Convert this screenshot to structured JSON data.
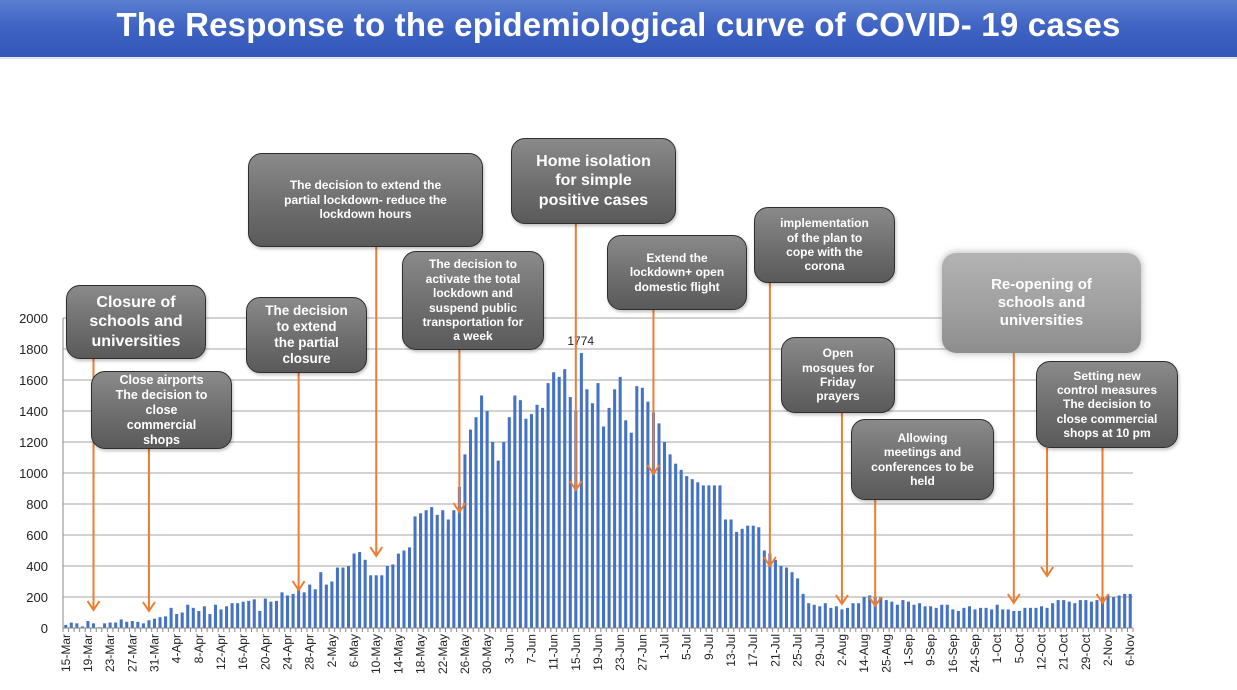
{
  "slide": {
    "title": "The Response to the epidemiological curve of COVID- 19 cases"
  },
  "colors": {
    "bar": "#4472c4",
    "arrow": "#ed7d31",
    "grid": "#a6a6a6",
    "annotation_fill": "#6e6e6e",
    "title_bar": "#3f64c4"
  },
  "chart_data": {
    "type": "bar",
    "title": "",
    "xlabel": "",
    "ylabel": "",
    "ylim": [
      0,
      2000
    ],
    "yticks": [
      0,
      200,
      400,
      600,
      800,
      1000,
      1200,
      1400,
      1600,
      1800,
      2000
    ],
    "grid": true,
    "legend": "none",
    "peak_label": {
      "value": 1774,
      "text": "1774",
      "bar_index": 93
    },
    "xtick_labels": [
      {
        "index": 0,
        "label": "15-Mar"
      },
      {
        "index": 4,
        "label": "19-Mar"
      },
      {
        "index": 8,
        "label": "23-Mar"
      },
      {
        "index": 12,
        "label": "27-Mar"
      },
      {
        "index": 16,
        "label": "31-Mar"
      },
      {
        "index": 20,
        "label": "4-Apr"
      },
      {
        "index": 24,
        "label": "8-Apr"
      },
      {
        "index": 28,
        "label": "12-Apr"
      },
      {
        "index": 32,
        "label": "16-Apr"
      },
      {
        "index": 36,
        "label": "20-Apr"
      },
      {
        "index": 40,
        "label": "24-Apr"
      },
      {
        "index": 44,
        "label": "28-Apr"
      },
      {
        "index": 48,
        "label": "2-May"
      },
      {
        "index": 52,
        "label": "6-May"
      },
      {
        "index": 56,
        "label": "10-May"
      },
      {
        "index": 60,
        "label": "14-May"
      },
      {
        "index": 64,
        "label": "18-May"
      },
      {
        "index": 68,
        "label": "22-May"
      },
      {
        "index": 72,
        "label": "26-May"
      },
      {
        "index": 76,
        "label": "30-May"
      },
      {
        "index": 80,
        "label": "3-Jun"
      },
      {
        "index": 84,
        "label": "7-Jun"
      },
      {
        "index": 88,
        "label": "11-Jun"
      },
      {
        "index": 92,
        "label": "15-Jun"
      },
      {
        "index": 96,
        "label": "19-Jun"
      },
      {
        "index": 100,
        "label": "23-Jun"
      },
      {
        "index": 104,
        "label": "27-Jun"
      },
      {
        "index": 108,
        "label": "1-Jul"
      },
      {
        "index": 112,
        "label": "5-Jul"
      },
      {
        "index": 116,
        "label": "9-Jul"
      },
      {
        "index": 120,
        "label": "13-Jul"
      },
      {
        "index": 124,
        "label": "17-Jul"
      },
      {
        "index": 128,
        "label": "21-Jul"
      },
      {
        "index": 132,
        "label": "25-Jul"
      },
      {
        "index": 136,
        "label": "29-Jul"
      },
      {
        "index": 140,
        "label": "2-Aug"
      },
      {
        "index": 144,
        "label": "14-Aug"
      },
      {
        "index": 148,
        "label": "25-Aug"
      },
      {
        "index": 152,
        "label": "1-Sep"
      },
      {
        "index": 156,
        "label": "9-Sep"
      },
      {
        "index": 160,
        "label": "16-Sep"
      },
      {
        "index": 164,
        "label": "24-Sep"
      },
      {
        "index": 168,
        "label": "1-Oct"
      },
      {
        "index": 172,
        "label": "5-Oct"
      },
      {
        "index": 176,
        "label": "12-Oct"
      },
      {
        "index": 180,
        "label": "21-Oct"
      },
      {
        "index": 184,
        "label": "29-Oct"
      },
      {
        "index": 188,
        "label": "2-Nov"
      },
      {
        "index": 192,
        "label": "6-Nov"
      }
    ],
    "values": [
      20,
      35,
      30,
      10,
      45,
      30,
      5,
      30,
      35,
      35,
      55,
      40,
      45,
      40,
      30,
      50,
      60,
      70,
      75,
      130,
      90,
      100,
      150,
      130,
      110,
      140,
      90,
      150,
      120,
      140,
      160,
      160,
      170,
      175,
      185,
      110,
      190,
      170,
      175,
      230,
      210,
      220,
      250,
      230,
      280,
      250,
      360,
      280,
      300,
      390,
      390,
      400,
      480,
      490,
      440,
      340,
      340,
      340,
      400,
      410,
      480,
      500,
      520,
      720,
      740,
      760,
      780,
      730,
      760,
      700,
      760,
      910,
      1120,
      1280,
      1360,
      1500,
      1400,
      1200,
      1080,
      1200,
      1360,
      1500,
      1470,
      1350,
      1380,
      1440,
      1420,
      1580,
      1650,
      1620,
      1670,
      1490,
      1400,
      1774,
      1540,
      1450,
      1580,
      1300,
      1420,
      1540,
      1620,
      1340,
      1260,
      1560,
      1550,
      1460,
      1390,
      1320,
      1200,
      1120,
      1060,
      1020,
      980,
      960,
      940,
      920,
      920,
      920,
      920,
      700,
      700,
      620,
      640,
      660,
      660,
      650,
      500,
      480,
      440,
      400,
      390,
      360,
      320,
      220,
      160,
      150,
      140,
      160,
      130,
      140,
      120,
      130,
      160,
      160,
      200,
      210,
      200,
      200,
      180,
      170,
      150,
      180,
      170,
      150,
      160,
      140,
      140,
      130,
      150,
      150,
      120,
      110,
      130,
      140,
      120,
      130,
      130,
      120,
      150,
      120,
      120,
      110,
      110,
      130,
      130,
      130,
      140,
      130,
      160,
      180,
      180,
      170,
      160,
      180,
      180,
      170,
      180,
      200,
      210,
      200,
      210,
      220,
      220
    ]
  },
  "annotations": [
    {
      "id": "closure-schools",
      "text": "Closure of\nschools and\nuniversities",
      "arrow_target_index": 5
    },
    {
      "id": "close-airports",
      "text": "Close airports\nThe decision to\nclose\ncommercial\nshops",
      "arrow_target_index": 15
    },
    {
      "id": "extend-partial-closure",
      "text": "The decision\nto extend\nthe partial\nclosure",
      "arrow_target_index": 42
    },
    {
      "id": "extend-partial-lockdown",
      "text": "The decision to extend the\npartial lockdown- reduce the\nlockdown hours",
      "arrow_target_index": 56
    },
    {
      "id": "total-lockdown",
      "text": "The decision to\nactivate the total\nlockdown and\nsuspend public\ntransportation for\na week",
      "arrow_target_index": 71
    },
    {
      "id": "home-isolation",
      "text": "Home isolation\nfor simple\npositive cases",
      "arrow_target_index": 92
    },
    {
      "id": "extend-lockdown-domestic",
      "text": "Extend the\nlockdown+ open\ndomestic flight",
      "arrow_target_index": 106
    },
    {
      "id": "implementation-plan",
      "text": "implementation\nof the plan to\ncope with the\ncorona",
      "arrow_target_index": 127
    },
    {
      "id": "open-mosques",
      "text": "Open\nmosques for\nFriday\nprayers",
      "arrow_target_index": 140
    },
    {
      "id": "allowing-meetings",
      "text": "Allowing\nmeetings and\nconferences to be\nheld",
      "arrow_target_index": 146
    },
    {
      "id": "reopening-schools",
      "text": "Re-opening of\nschools and\nuniversities",
      "arrow_target_index": 171
    },
    {
      "id": "new-control-measures",
      "text": "Setting new\ncontrol measures\nThe decision to\nclose commercial\nshops at 10 pm",
      "arrow_target_index": 187
    }
  ],
  "extra_arrow": {
    "arrow_target_index": 177
  }
}
